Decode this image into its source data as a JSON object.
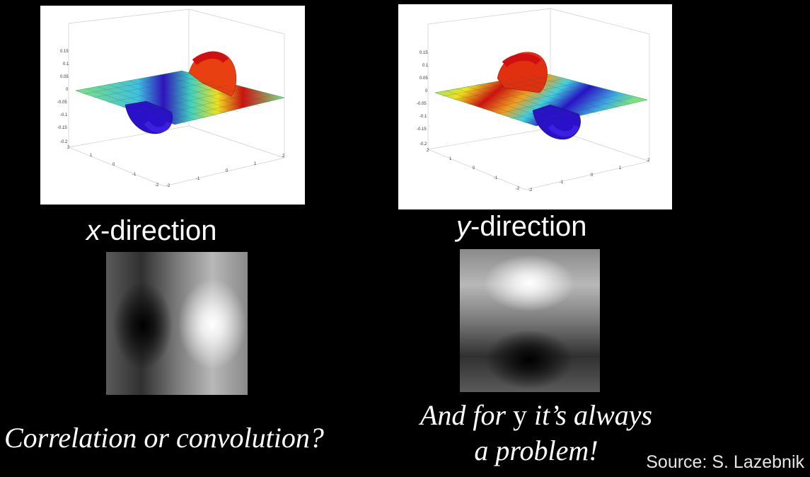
{
  "slide": {
    "left_panel": {
      "axis_letter": "x",
      "caption_rest": "-direction",
      "z_ticks": [
        "0.15",
        "0.1",
        "0.05",
        "0",
        "-0.05",
        "-0.1",
        "-0.15",
        "-0.2"
      ],
      "x_ticks": [
        "2",
        "1",
        "0",
        "-1",
        "-2"
      ],
      "y_ticks": [
        "-2",
        "-1",
        "0",
        "1",
        "2"
      ]
    },
    "right_panel": {
      "axis_letter": "y",
      "caption_rest": "-direction",
      "z_ticks": [
        "0.15",
        "0.1",
        "0.05",
        "0",
        "-0.05",
        "-0.1",
        "-0.15",
        "-0.2"
      ],
      "x_ticks": [
        "2",
        "1",
        "0",
        "-1",
        "-2"
      ],
      "y_ticks": [
        "-2",
        "-1",
        "0",
        "1",
        "2"
      ]
    },
    "question": "Correlation or convolution?",
    "note_line1_a": "And for ",
    "note_line1_y": "y",
    "note_line1_b": " it’s always",
    "note_line2": "a problem!",
    "source": "Source: S. Lazebnik"
  },
  "colors": {
    "background": "#000000",
    "surface_peak": "#d01010",
    "surface_trough": "#2a10c8",
    "surface_flat": "#7fe080"
  }
}
